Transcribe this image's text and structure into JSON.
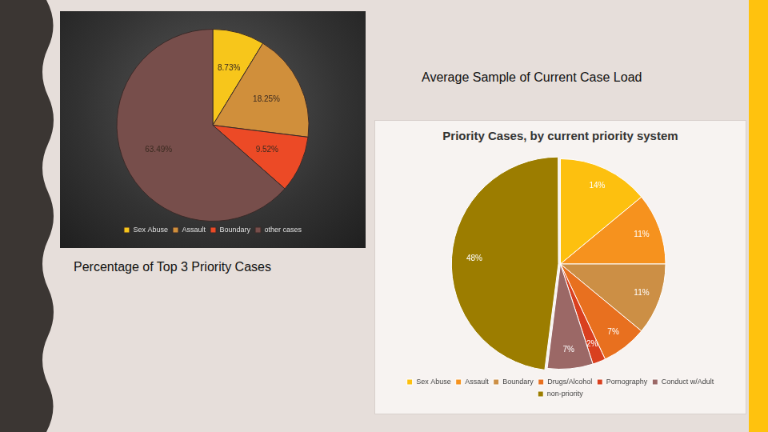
{
  "heading": "Average Sample of Current Case Load",
  "chart_data": [
    {
      "type": "pie",
      "title": "Percentage of Top 3 Priority Cases",
      "categories": [
        "Sex Abuse",
        "Assault",
        "Boundary",
        "other cases"
      ],
      "values": [
        8.73,
        18.25,
        9.52,
        63.49
      ],
      "value_labels": [
        "8.73%",
        "18.25%",
        "9.52%",
        "63.49%"
      ],
      "colors": [
        "#f7c61b",
        "#d08f3b",
        "#ec4a26",
        "#774e4b"
      ],
      "data_labels": true,
      "legend": "bottom"
    },
    {
      "type": "pie",
      "title": "Priority Cases, by current priority system",
      "categories": [
        "Sex Abuse",
        "Assault",
        "Boundary",
        "Drugs/Alcohol",
        "Pornography",
        "Conduct w/Adult",
        "non-priority"
      ],
      "values": [
        14,
        11,
        11,
        7,
        2,
        7,
        48
      ],
      "value_labels": [
        "14%",
        "11%",
        "11%",
        "7%",
        "2%",
        "7%",
        "48%"
      ],
      "colors": [
        "#fdc00f",
        "#f6921e",
        "#cc8f45",
        "#e8701f",
        "#d9401f",
        "#9b6866",
        "#9c7d00"
      ],
      "data_labels": true,
      "legend": "bottom"
    }
  ]
}
